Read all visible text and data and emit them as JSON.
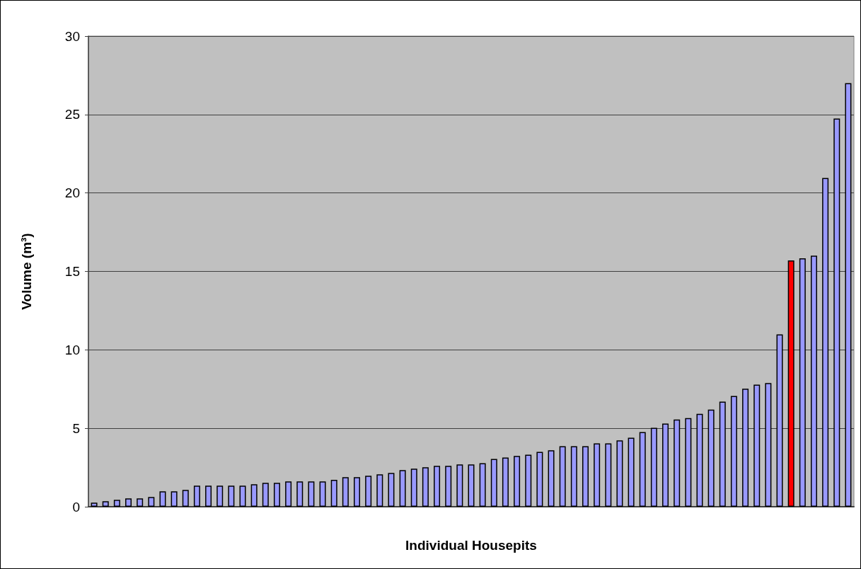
{
  "chart_data": {
    "type": "bar",
    "xlabel": "Individual Housepits",
    "ylabel": "Volume (m³)",
    "categories": [
      null,
      null,
      null,
      null,
      null,
      null,
      null,
      null,
      null,
      null,
      null,
      null,
      null,
      null,
      null,
      null,
      null,
      null,
      null,
      null,
      null,
      null,
      null,
      null,
      null,
      null,
      null,
      null,
      null,
      null,
      null,
      null,
      null,
      null,
      null,
      null,
      null,
      null,
      null,
      null,
      null,
      null,
      null,
      null,
      null,
      null,
      null,
      null,
      null,
      null,
      null,
      null,
      null,
      null,
      null,
      null,
      null,
      null,
      null,
      null,
      null,
      null,
      null,
      null,
      null,
      null,
      null
    ],
    "values": [
      0.26,
      0.35,
      0.44,
      0.53,
      0.53,
      0.62,
      0.98,
      0.98,
      1.07,
      1.34,
      1.34,
      1.34,
      1.34,
      1.34,
      1.43,
      1.52,
      1.52,
      1.61,
      1.61,
      1.61,
      1.61,
      1.71,
      1.88,
      1.88,
      1.97,
      2.06,
      2.15,
      2.33,
      2.42,
      2.51,
      2.6,
      2.6,
      2.69,
      2.69,
      2.78,
      3.05,
      3.14,
      3.24,
      3.32,
      3.5,
      3.6,
      3.86,
      3.86,
      3.86,
      4.04,
      4.04,
      4.23,
      4.4,
      4.76,
      5.03,
      5.3,
      5.56,
      5.65,
      5.92,
      6.19,
      6.7,
      7.06,
      7.52,
      7.78,
      7.88,
      10.98,
      15.7,
      15.83,
      16.0,
      20.96,
      24.75,
      27.0
    ],
    "colors": [
      "#9999ff",
      "#9999ff",
      "#9999ff",
      "#9999ff",
      "#9999ff",
      "#9999ff",
      "#9999ff",
      "#9999ff",
      "#9999ff",
      "#9999ff",
      "#9999ff",
      "#9999ff",
      "#9999ff",
      "#9999ff",
      "#9999ff",
      "#9999ff",
      "#9999ff",
      "#9999ff",
      "#9999ff",
      "#9999ff",
      "#9999ff",
      "#9999ff",
      "#9999ff",
      "#9999ff",
      "#9999ff",
      "#9999ff",
      "#9999ff",
      "#9999ff",
      "#9999ff",
      "#9999ff",
      "#9999ff",
      "#9999ff",
      "#9999ff",
      "#9999ff",
      "#9999ff",
      "#9999ff",
      "#9999ff",
      "#9999ff",
      "#9999ff",
      "#9999ff",
      "#9999ff",
      "#9999ff",
      "#9999ff",
      "#9999ff",
      "#9999ff",
      "#9999ff",
      "#9999ff",
      "#9999ff",
      "#9999ff",
      "#9999ff",
      "#9999ff",
      "#9999ff",
      "#9999ff",
      "#9999ff",
      "#9999ff",
      "#9999ff",
      "#9999ff",
      "#9999ff",
      "#9999ff",
      "#9999ff",
      "#9999ff",
      "#ff0000",
      "#9999ff",
      "#9999ff",
      "#9999ff",
      "#9999ff",
      "#9999ff"
    ],
    "ylim": [
      0,
      30
    ],
    "yticks": [
      0,
      5,
      10,
      15,
      20,
      25,
      30
    ],
    "grid": "y"
  }
}
